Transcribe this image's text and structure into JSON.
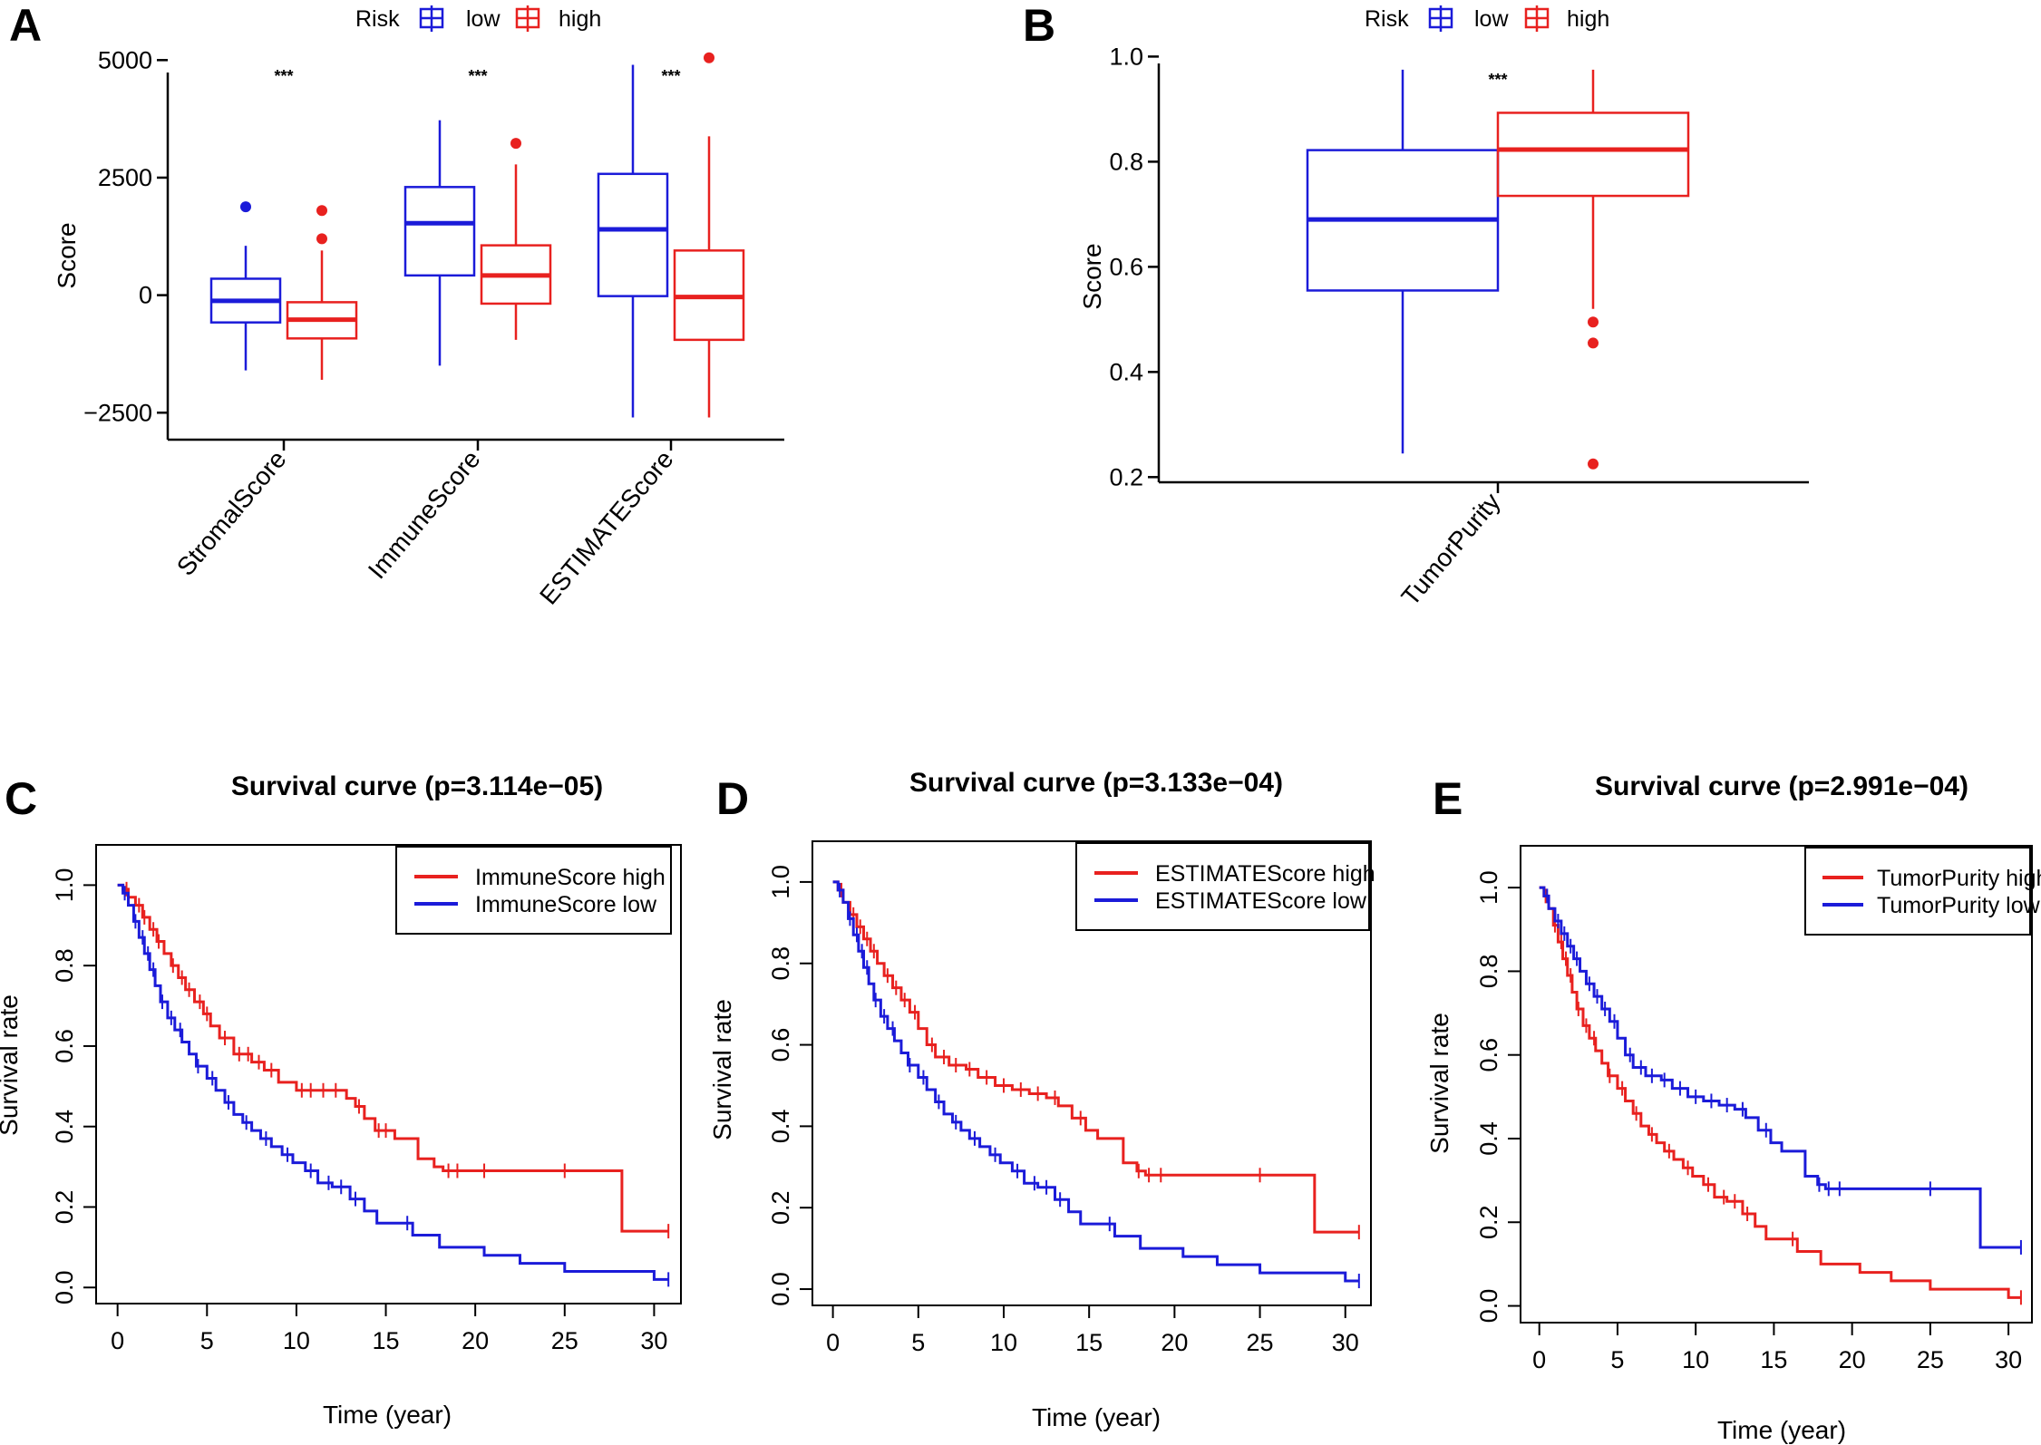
{
  "colors": {
    "low": "#1b1bd9",
    "high": "#e8211f",
    "axis": "#000000"
  },
  "chart_data": [
    {
      "panel": "A",
      "type": "box",
      "legend": {
        "title": "Risk",
        "entries": [
          "low",
          "high"
        ],
        "placement": "top-center"
      },
      "ylabel": "Score",
      "ylim": [
        -2900,
        5700
      ],
      "yticks": [
        5000,
        2500,
        0,
        -2500
      ],
      "ytick_labels": [
        "5000",
        "2500",
        "0",
        "−2500"
      ],
      "categories": [
        "StromalScore",
        "ImmuneScore",
        "ESTIMATEScore"
      ],
      "significance": [
        "***",
        "***",
        "***"
      ],
      "series": [
        {
          "name": "low",
          "boxes": [
            {
              "min": -1600,
              "q1": -580,
              "median": -120,
              "q3": 350,
              "max": 1050,
              "outliers": [
                1880
              ]
            },
            {
              "min": -1500,
              "q1": 420,
              "median": 1530,
              "q3": 2300,
              "max": 3720,
              "outliers": []
            },
            {
              "min": -2600,
              "q1": -20,
              "median": 1400,
              "q3": 2580,
              "max": 4900,
              "outliers": []
            }
          ]
        },
        {
          "name": "high",
          "boxes": [
            {
              "min": -1800,
              "q1": -920,
              "median": -520,
              "q3": -150,
              "max": 950,
              "outliers": [
                1200,
                1800
              ]
            },
            {
              "min": -950,
              "q1": -180,
              "median": 420,
              "q3": 1060,
              "max": 2780,
              "outliers": [
                3230
              ]
            },
            {
              "min": -2600,
              "q1": -950,
              "median": -40,
              "q3": 950,
              "max": 3380,
              "outliers": [
                5050
              ]
            }
          ]
        }
      ]
    },
    {
      "panel": "B",
      "type": "box",
      "legend": {
        "title": "Risk",
        "entries": [
          "low",
          "high"
        ],
        "placement": "top-center"
      },
      "ylabel": "Score",
      "ylim": [
        0.185,
        1.03
      ],
      "yticks": [
        1.0,
        0.8,
        0.6,
        0.4,
        0.2
      ],
      "ytick_labels": [
        "1.0",
        "0.8",
        "0.6",
        "0.4",
        "0.2"
      ],
      "categories": [
        "TumorPurity"
      ],
      "significance": [
        "***"
      ],
      "series": [
        {
          "name": "low",
          "boxes": [
            {
              "min": 0.245,
              "q1": 0.555,
              "median": 0.69,
              "q3": 0.822,
              "max": 0.975,
              "outliers": []
            }
          ]
        },
        {
          "name": "high",
          "boxes": [
            {
              "min": 0.52,
              "q1": 0.735,
              "median": 0.823,
              "q3": 0.893,
              "max": 0.975,
              "outliers": [
                0.495,
                0.455,
                0.225
              ]
            }
          ]
        }
      ]
    },
    {
      "panel": "C",
      "type": "line",
      "title": "Survival curve (p=3.114e−05)",
      "xlabel": "Time (year)",
      "ylabel": "Survival rate",
      "xlim": [
        -1.2,
        31.5
      ],
      "ylim": [
        -0.04,
        1.1
      ],
      "xticks": [
        0,
        5,
        10,
        15,
        20,
        25,
        30
      ],
      "yticks": [
        0.0,
        0.2,
        0.4,
        0.6,
        0.8,
        1.0
      ],
      "ytick_labels": [
        "0.0",
        "0.2",
        "0.4",
        "0.6",
        "0.8",
        "1.0"
      ],
      "legend": {
        "placement": "top-right",
        "entries": [
          "ImmuneScore high",
          "ImmuneScore low"
        ]
      },
      "series": [
        {
          "name": "ImmuneScore high",
          "color_key": "high",
          "x": [
            0,
            0.3,
            0.6,
            1.0,
            1.4,
            1.8,
            2.2,
            2.6,
            3.0,
            3.4,
            3.8,
            4.3,
            4.8,
            5.2,
            5.7,
            6.5,
            7.5,
            8.2,
            9.0,
            10.0,
            11.0,
            12.0,
            12.8,
            13.3,
            13.8,
            14.4,
            15.5,
            16.8,
            17.7,
            18.2,
            20.0,
            25.0,
            28.2,
            30.8
          ],
          "y": [
            1.0,
            0.99,
            0.97,
            0.95,
            0.92,
            0.89,
            0.86,
            0.83,
            0.8,
            0.77,
            0.74,
            0.71,
            0.68,
            0.65,
            0.62,
            0.58,
            0.56,
            0.54,
            0.51,
            0.49,
            0.49,
            0.49,
            0.47,
            0.45,
            0.42,
            0.39,
            0.37,
            0.32,
            0.3,
            0.29,
            0.29,
            0.29,
            0.14,
            0.14
          ],
          "censor_x": [
            0.5,
            1.2,
            1.5,
            2.0,
            2.3,
            3.1,
            3.6,
            4.0,
            4.6,
            5.0,
            6.0,
            6.8,
            7.3,
            7.9,
            8.6,
            10.3,
            10.8,
            11.5,
            12.2,
            13.5,
            14.6,
            15.0,
            18.5,
            19.0,
            20.5,
            25.0,
            30.8
          ]
        },
        {
          "name": "ImmuneScore low",
          "color_key": "low",
          "x": [
            0,
            0.3,
            0.6,
            0.9,
            1.2,
            1.5,
            1.8,
            2.1,
            2.4,
            2.8,
            3.2,
            3.6,
            4.0,
            4.4,
            5.0,
            5.5,
            6.0,
            6.5,
            7.0,
            7.5,
            8.0,
            8.6,
            9.2,
            9.8,
            10.5,
            11.2,
            12.0,
            13.0,
            13.8,
            14.5,
            16.5,
            18.0,
            19.5,
            20.5,
            22.5,
            25.0,
            30.0,
            30.8
          ],
          "y": [
            1.0,
            0.98,
            0.95,
            0.91,
            0.87,
            0.83,
            0.79,
            0.75,
            0.71,
            0.67,
            0.64,
            0.61,
            0.58,
            0.55,
            0.52,
            0.49,
            0.46,
            0.43,
            0.41,
            0.39,
            0.37,
            0.35,
            0.33,
            0.31,
            0.29,
            0.26,
            0.25,
            0.22,
            0.19,
            0.16,
            0.13,
            0.1,
            0.1,
            0.08,
            0.06,
            0.04,
            0.02,
            0.02
          ],
          "censor_x": [
            0.4,
            1.0,
            1.4,
            1.7,
            2.0,
            2.5,
            3.0,
            3.5,
            4.5,
            5.3,
            6.2,
            7.2,
            8.3,
            9.5,
            10.8,
            11.8,
            12.5,
            13.3,
            16.2,
            30.8
          ]
        }
      ]
    },
    {
      "panel": "D",
      "type": "line",
      "title": "Survival curve (p=3.133e−04)",
      "xlabel": "Time (year)",
      "ylabel": "Survival rate",
      "xlim": [
        -1.2,
        31.5
      ],
      "ylim": [
        -0.04,
        1.1
      ],
      "xticks": [
        0,
        5,
        10,
        15,
        20,
        25,
        30
      ],
      "yticks": [
        0.0,
        0.2,
        0.4,
        0.6,
        0.8,
        1.0
      ],
      "ytick_labels": [
        "0.0",
        "0.2",
        "0.4",
        "0.6",
        "0.8",
        "1.0"
      ],
      "legend": {
        "placement": "top-right",
        "entries": [
          "ESTIMATEScore high",
          "ESTIMATEScore low"
        ]
      },
      "series": [
        {
          "name": "ESTIMATEScore high",
          "color_key": "high",
          "x": [
            0,
            0.3,
            0.6,
            1.0,
            1.4,
            1.8,
            2.2,
            2.6,
            3.0,
            3.5,
            4.0,
            4.5,
            5.0,
            5.5,
            6.0,
            6.8,
            7.8,
            8.5,
            9.5,
            10.5,
            11.5,
            12.5,
            13.2,
            14.0,
            14.8,
            15.5,
            17.0,
            17.8,
            18.3,
            20.0,
            25.0,
            28.2,
            30.8
          ],
          "y": [
            1.0,
            0.98,
            0.95,
            0.92,
            0.89,
            0.86,
            0.83,
            0.8,
            0.77,
            0.74,
            0.71,
            0.68,
            0.64,
            0.6,
            0.57,
            0.55,
            0.54,
            0.52,
            0.5,
            0.49,
            0.48,
            0.47,
            0.45,
            0.42,
            0.39,
            0.37,
            0.31,
            0.29,
            0.28,
            0.28,
            0.28,
            0.14,
            0.14
          ],
          "censor_x": [
            0.5,
            1.2,
            1.6,
            2.0,
            2.4,
            3.2,
            3.7,
            4.2,
            4.8,
            5.8,
            6.5,
            7.2,
            8.0,
            9.0,
            10.0,
            11.0,
            12.0,
            13.0,
            14.5,
            17.9,
            18.5,
            19.2,
            25.0,
            30.8
          ]
        },
        {
          "name": "ESTIMATEScore low",
          "color_key": "low",
          "x": [
            0,
            0.3,
            0.6,
            0.9,
            1.2,
            1.5,
            1.8,
            2.1,
            2.4,
            2.8,
            3.2,
            3.6,
            4.0,
            4.4,
            5.0,
            5.5,
            6.0,
            6.5,
            7.0,
            7.5,
            8.0,
            8.6,
            9.2,
            9.8,
            10.5,
            11.2,
            12.0,
            13.0,
            13.8,
            14.5,
            16.5,
            18.0,
            19.5,
            20.5,
            22.5,
            25.0,
            30.0,
            30.8
          ],
          "y": [
            1.0,
            0.98,
            0.95,
            0.91,
            0.87,
            0.83,
            0.79,
            0.75,
            0.71,
            0.67,
            0.64,
            0.61,
            0.58,
            0.55,
            0.52,
            0.49,
            0.46,
            0.43,
            0.41,
            0.39,
            0.37,
            0.35,
            0.33,
            0.31,
            0.29,
            0.26,
            0.25,
            0.22,
            0.19,
            0.16,
            0.13,
            0.1,
            0.1,
            0.08,
            0.06,
            0.04,
            0.02,
            0.02
          ],
          "censor_x": [
            0.4,
            1.0,
            1.4,
            1.7,
            2.0,
            2.5,
            3.0,
            3.5,
            4.5,
            5.3,
            6.2,
            7.2,
            8.3,
            9.5,
            10.8,
            11.8,
            12.5,
            13.3,
            16.2,
            30.8
          ]
        }
      ]
    },
    {
      "panel": "E",
      "type": "line",
      "title": "Survival curve (p=2.991e−04)",
      "xlabel": "Time (year)",
      "ylabel": "Survival rate",
      "xlim": [
        -1.2,
        31.5
      ],
      "ylim": [
        -0.04,
        1.1
      ],
      "xticks": [
        0,
        5,
        10,
        15,
        20,
        25,
        30
      ],
      "yticks": [
        0.0,
        0.2,
        0.4,
        0.6,
        0.8,
        1.0
      ],
      "ytick_labels": [
        "0.0",
        "0.2",
        "0.4",
        "0.6",
        "0.8",
        "1.0"
      ],
      "legend": {
        "placement": "top-right",
        "entries": [
          "TumorPurity high",
          "TumorPurity low"
        ]
      },
      "series": [
        {
          "name": "TumorPurity high",
          "color_key": "high",
          "x": [
            0,
            0.3,
            0.6,
            0.9,
            1.2,
            1.5,
            1.8,
            2.1,
            2.4,
            2.8,
            3.2,
            3.6,
            4.0,
            4.4,
            5.0,
            5.5,
            6.0,
            6.5,
            7.0,
            7.5,
            8.0,
            8.6,
            9.2,
            9.8,
            10.5,
            11.2,
            12.0,
            13.0,
            13.8,
            14.5,
            16.5,
            18.0,
            19.5,
            20.5,
            22.5,
            25.0,
            30.0,
            30.8
          ],
          "y": [
            1.0,
            0.98,
            0.95,
            0.91,
            0.87,
            0.83,
            0.79,
            0.75,
            0.71,
            0.67,
            0.64,
            0.61,
            0.58,
            0.55,
            0.52,
            0.49,
            0.46,
            0.43,
            0.41,
            0.39,
            0.37,
            0.35,
            0.33,
            0.31,
            0.29,
            0.26,
            0.25,
            0.22,
            0.19,
            0.16,
            0.13,
            0.1,
            0.1,
            0.08,
            0.06,
            0.04,
            0.02,
            0.02
          ],
          "censor_x": [
            0.4,
            1.0,
            1.4,
            1.7,
            2.0,
            2.5,
            3.0,
            3.5,
            4.5,
            5.3,
            6.2,
            7.2,
            8.3,
            9.5,
            10.8,
            11.8,
            12.5,
            13.3,
            16.2,
            30.8
          ]
        },
        {
          "name": "TumorPurity low",
          "color_key": "low",
          "x": [
            0,
            0.3,
            0.6,
            1.0,
            1.4,
            1.8,
            2.2,
            2.6,
            3.0,
            3.5,
            4.0,
            4.5,
            5.0,
            5.5,
            6.0,
            6.8,
            7.8,
            8.5,
            9.5,
            10.5,
            11.5,
            12.5,
            13.2,
            14.0,
            14.8,
            15.5,
            17.0,
            17.8,
            18.3,
            20.0,
            25.0,
            28.2,
            30.8
          ],
          "y": [
            1.0,
            0.98,
            0.95,
            0.92,
            0.89,
            0.86,
            0.83,
            0.8,
            0.77,
            0.74,
            0.71,
            0.68,
            0.64,
            0.6,
            0.57,
            0.55,
            0.54,
            0.52,
            0.5,
            0.49,
            0.48,
            0.47,
            0.45,
            0.42,
            0.39,
            0.37,
            0.31,
            0.29,
            0.28,
            0.28,
            0.28,
            0.14,
            0.14
          ],
          "censor_x": [
            0.5,
            1.2,
            1.6,
            2.0,
            2.4,
            3.2,
            3.7,
            4.2,
            4.8,
            5.8,
            6.5,
            7.2,
            8.0,
            9.0,
            10.0,
            11.0,
            12.0,
            13.0,
            14.5,
            17.9,
            18.5,
            19.2,
            25.0,
            30.8
          ]
        }
      ]
    }
  ]
}
